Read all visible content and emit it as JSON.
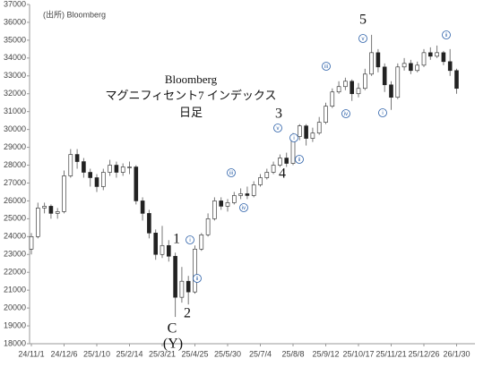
{
  "chart_data": {
    "type": "candlestick",
    "title_lines": [
      "Bloomberg",
      "マグニフィセント7 インデックス",
      "日足"
    ],
    "source": "(出所) Bloomberg",
    "categories": [
      "24/11/1",
      null,
      null,
      null,
      null,
      "24/12/6",
      null,
      null,
      null,
      null,
      "25/1/10",
      null,
      null,
      null,
      null,
      "25/2/14",
      null,
      null,
      null,
      null,
      "25/3/21",
      null,
      null,
      null,
      null,
      "25/4/25",
      null,
      null,
      null,
      null,
      "25/5/30",
      null,
      null,
      null,
      null,
      "25/7/4",
      null,
      null,
      null,
      null,
      "25/8/8",
      null,
      null,
      null,
      null,
      "25/9/12",
      null,
      null,
      null,
      null,
      "25/10/17",
      null,
      null,
      null,
      null,
      "25/11/21",
      null,
      null,
      null,
      null,
      "25/12/26",
      null,
      null,
      null,
      null,
      "26/1/30"
    ],
    "open": [
      23300,
      24000,
      25600,
      25700,
      25300,
      25400,
      27400,
      28600,
      28200,
      27600,
      27300,
      26800,
      27600,
      28000,
      27600,
      27900,
      27900,
      26000,
      25300,
      24200,
      23000,
      23500,
      22900,
      20600,
      21500,
      20900,
      23300,
      24100,
      25000,
      26000,
      25700,
      25900,
      26300,
      26400,
      26300,
      26900,
      27300,
      27600,
      28000,
      28400,
      28100,
      29600,
      30200,
      29500,
      29800,
      30400,
      31300,
      32100,
      32400,
      32700,
      32000,
      32300,
      33100,
      34300,
      33500,
      32500,
      31800,
      33500,
      33700,
      33300,
      33600,
      34300,
      34100,
      34300,
      33800,
      33300
    ],
    "high": [
      24200,
      25900,
      25900,
      25800,
      25600,
      27700,
      28900,
      28900,
      28400,
      27800,
      27500,
      27800,
      28300,
      28200,
      28100,
      28200,
      28000,
      26200,
      25500,
      24400,
      24600,
      23800,
      23100,
      22300,
      21800,
      23500,
      24200,
      25300,
      26200,
      26200,
      26100,
      26500,
      26700,
      26800,
      27100,
      27500,
      27800,
      28200,
      28600,
      28700,
      29800,
      30300,
      30300,
      30100,
      30700,
      31500,
      32300,
      32700,
      32900,
      32800,
      32600,
      33400,
      35300,
      34500,
      33700,
      32700,
      33700,
      34000,
      33900,
      33800,
      34500,
      34600,
      34700,
      34400,
      34500,
      33400
    ],
    "low": [
      23000,
      23900,
      25300,
      25000,
      25000,
      25300,
      27300,
      27800,
      27300,
      26800,
      26500,
      26600,
      27400,
      27300,
      27400,
      27500,
      25800,
      24900,
      23900,
      22700,
      22800,
      22600,
      19500,
      20300,
      20200,
      20800,
      23200,
      24000,
      24900,
      25500,
      25400,
      25800,
      26100,
      26100,
      26200,
      26800,
      27200,
      27500,
      27900,
      27900,
      28000,
      29400,
      29100,
      29300,
      29700,
      30300,
      31200,
      32000,
      32200,
      31600,
      31800,
      32200,
      33000,
      33200,
      32100,
      31100,
      31700,
      33300,
      33100,
      33200,
      33500,
      33900,
      34000,
      33600,
      33000,
      32000
    ],
    "close": [
      24000,
      25600,
      25700,
      25300,
      25400,
      27400,
      28600,
      28200,
      27600,
      27300,
      26800,
      27600,
      28000,
      27600,
      27900,
      27900,
      26000,
      25300,
      24200,
      23000,
      23500,
      22900,
      20600,
      21500,
      20900,
      23300,
      24100,
      25000,
      26000,
      25700,
      25900,
      26300,
      26400,
      26300,
      26900,
      27300,
      27600,
      28000,
      28400,
      28100,
      29600,
      30200,
      29500,
      29800,
      30400,
      31300,
      32100,
      32400,
      32700,
      32000,
      32300,
      33100,
      34300,
      33500,
      32500,
      31800,
      33500,
      33700,
      33300,
      33600,
      34300,
      34100,
      34300,
      33800,
      33300,
      32300
    ],
    "up_color": "#ffffff",
    "down_color": "#222222",
    "wick_color": "#777777",
    "ylim": [
      18000,
      37000
    ],
    "yticks": [
      18000,
      19000,
      20000,
      21000,
      22000,
      23000,
      24000,
      25000,
      26000,
      27000,
      28000,
      29000,
      30000,
      31000,
      32000,
      33000,
      34000,
      35000,
      36000,
      37000
    ],
    "wave_labels": [
      "5",
      "3",
      "4",
      "1",
      "2",
      "C",
      "(Y)"
    ],
    "sub_wave_labels": [
      "i",
      "ii",
      "iii",
      "iv",
      "v",
      "i",
      "ii",
      "iii",
      "iv",
      "v",
      "i",
      "ii"
    ]
  }
}
